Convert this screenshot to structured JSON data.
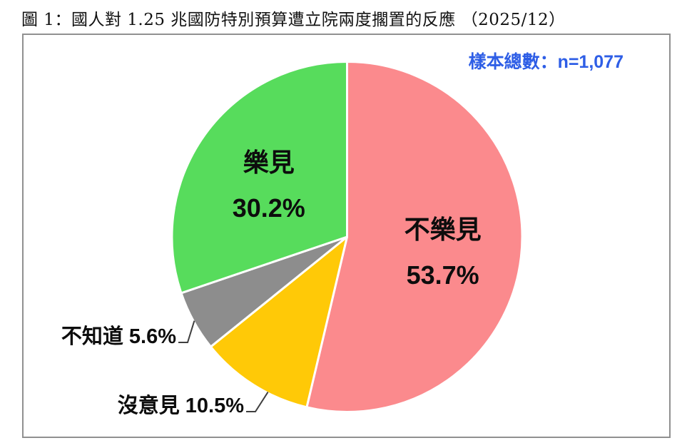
{
  "page": {
    "title": "圖 1：國人對 1.25 兆國防特別預算遭立院兩度擱置的反應 （2025/12）",
    "sample_label": "樣本總數：n=1,077"
  },
  "colors": {
    "title_text": "#111111",
    "sample_text": "#2e5ee6",
    "frame_border": "#909090",
    "slice_separator": "#ffffff",
    "leader_line": "#3f3f3f",
    "label_text": "#0d0d0d"
  },
  "chart_data": {
    "type": "pie",
    "title": "國人對 1.25 兆國防特別預算遭立院兩度擱置的反應",
    "date": "2025/12",
    "sample_size": "n=1,077",
    "start_angle_deg": 0,
    "direction": "clockwise",
    "legend_position": "none",
    "slices": [
      {
        "name": "not-pleased",
        "label": "不樂見",
        "value": 53.7,
        "display": "53.7%",
        "color": "#fb8a8d",
        "label_placement": "inside"
      },
      {
        "name": "no-opinion",
        "label": "沒意見",
        "value": 10.5,
        "display": "10.5%",
        "color": "#ffc907",
        "label_placement": "outside"
      },
      {
        "name": "dont-know",
        "label": "不知道",
        "value": 5.6,
        "display": "5.6%",
        "color": "#8d8d8d",
        "label_placement": "outside"
      },
      {
        "name": "pleased",
        "label": "樂見",
        "value": 30.2,
        "display": "30.2%",
        "color": "#57dc5c",
        "label_placement": "inside"
      }
    ]
  }
}
